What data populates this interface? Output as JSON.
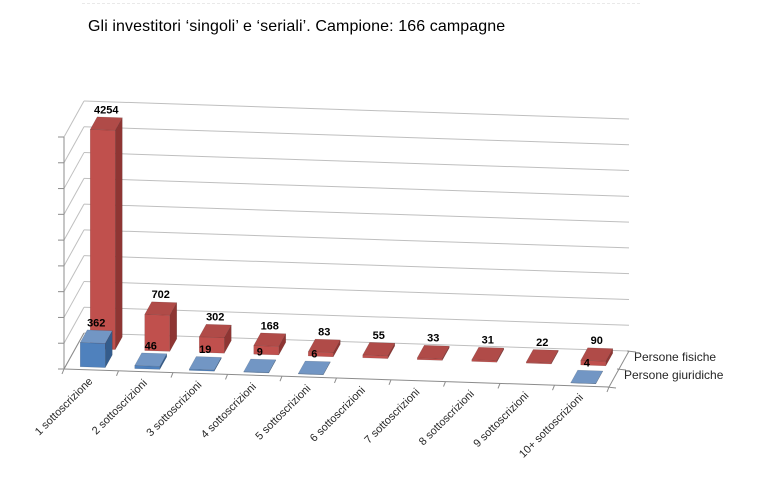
{
  "chart_data": {
    "type": "bar",
    "style": "3d-column",
    "title": "Gli investitori ‘singoli’ e ‘seriali’. Campione: 166 campagne",
    "categories": [
      "1 sottoscrizione",
      "2 sottoscrizioni",
      "3 sottoscrizioni",
      "4 sottoscrizioni",
      "5 sottoscrizioni",
      "6 sottoscrizioni",
      "7 sottoscrizioni",
      "8 sottoscrizioni",
      "9 sottoscrizioni",
      "10+ sottoscrizioni"
    ],
    "series": [
      {
        "name": "Persone fisiche",
        "color": "#C0504D",
        "color_top": "#B04B48",
        "color_side": "#8E3533",
        "values": [
          4254,
          702,
          302,
          168,
          83,
          55,
          33,
          31,
          22,
          90
        ]
      },
      {
        "name": "Persone giuridiche",
        "color": "#4F81BD",
        "color_top": "#7296C4",
        "color_side": "#345C8C",
        "values": [
          362,
          46,
          19,
          9,
          6,
          null,
          null,
          null,
          null,
          4
        ]
      }
    ],
    "value_axis": {
      "min": 0,
      "max": 4500,
      "step": 500,
      "labels_visible": false
    },
    "grid": true,
    "legend_position": "right-series-axis",
    "data_labels": true,
    "background": "#FFFFFF"
  }
}
